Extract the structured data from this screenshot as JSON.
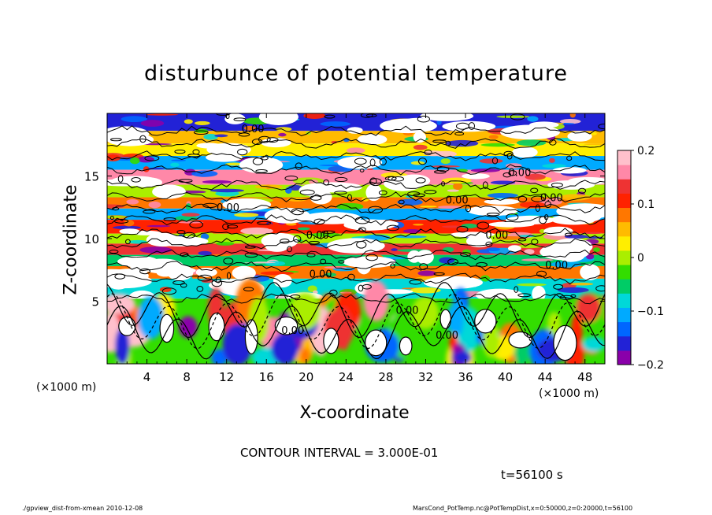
{
  "chart_data": {
    "type": "heatmap",
    "title": "disturbunce of potential temperature",
    "xlabel": "X-coordinate",
    "ylabel": "Z-coordinate",
    "x_unit": "(×1000 m)",
    "xlim": [
      0,
      50
    ],
    "ylim": [
      0,
      20
    ],
    "x_ticks": [
      4,
      8,
      12,
      16,
      20,
      24,
      28,
      32,
      36,
      40,
      44,
      48
    ],
    "y_ticks": [
      5,
      10,
      15
    ],
    "colorbar": {
      "range": [
        -0.2,
        0.2
      ],
      "ticks": [
        0.2,
        0.1,
        0,
        -0.1,
        -0.2
      ],
      "tick_labels": [
        "0.2",
        "0.1",
        "0",
        "−0.1",
        "−0.2"
      ],
      "colors": [
        "#8a00aa",
        "#2222d6",
        "#0066ff",
        "#00aaff",
        "#00d8d8",
        "#00cc66",
        "#33dd00",
        "#aaee00",
        "#ffee00",
        "#ffbb00",
        "#ff7700",
        "#ff2200",
        "#ee3333",
        "#ff88a8",
        "#ffc0cc"
      ]
    },
    "contour_label": "0.00",
    "bands_upper": [
      {
        "z": [
          18.6,
          20
        ],
        "value": -0.15
      },
      {
        "z": [
          17.6,
          18.6
        ],
        "value": 0.05
      },
      {
        "z": [
          16.6,
          17.6
        ],
        "value": 0.02
      },
      {
        "z": [
          15.5,
          16.6
        ],
        "value": -0.12
      },
      {
        "z": [
          14.3,
          15.5
        ],
        "value": 0.16
      },
      {
        "z": [
          13.3,
          14.3
        ],
        "value": 0.0
      },
      {
        "z": [
          12.4,
          13.3
        ],
        "value": 0.07
      },
      {
        "z": [
          11.5,
          12.4
        ],
        "value": -0.1
      },
      {
        "z": [
          10.4,
          11.5
        ],
        "value": 0.12
      },
      {
        "z": [
          9.6,
          10.4
        ],
        "value": 0.0
      },
      {
        "z": [
          8.7,
          9.6
        ],
        "value": 0.14
      },
      {
        "z": [
          7.8,
          8.7
        ],
        "value": -0.05
      },
      {
        "z": [
          6.8,
          7.8
        ],
        "value": 0.09
      },
      {
        "z": [
          5.2,
          6.8
        ],
        "value": -0.08
      }
    ]
  },
  "contour_interval": "CONTOUR INTERVAL = 3.000E-01",
  "time_label": "t=56100 s",
  "footer_left": "./gpview_dist-from-xmean   2010-12-08",
  "footer_right": "MarsCond_PotTemp.nc@PotTempDist,x=0:50000,z=0:20000,t=56100"
}
